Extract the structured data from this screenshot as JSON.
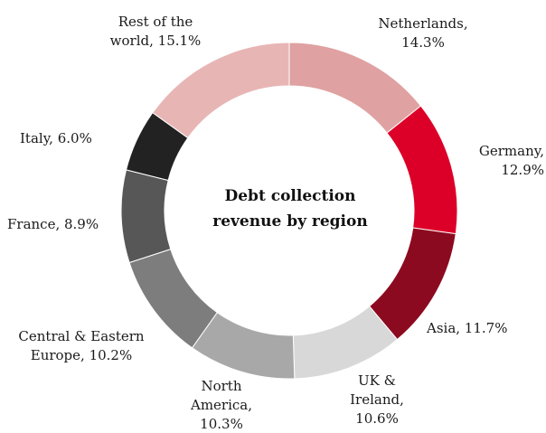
{
  "chart_data": {
    "type": "pie",
    "variant": "donut",
    "center_title": "Debt collection\nrevenue by region",
    "slices": [
      {
        "label": "Netherlands,\n14.3%",
        "name": "Netherlands",
        "value": 14.3,
        "color": "#dfa1a1"
      },
      {
        "label": "Germany,\n12.9%",
        "name": "Germany",
        "value": 12.9,
        "color": "#dc0028"
      },
      {
        "label": "Asia, 11.7%",
        "name": "Asia",
        "value": 11.7,
        "color": "#8c0a1f"
      },
      {
        "label": "UK &\nIreland,\n10.6%",
        "name": "UK & Ireland",
        "value": 10.6,
        "color": "#d8d8d8"
      },
      {
        "label": "North\nAmerica,\n10.3%",
        "name": "North America",
        "value": 10.3,
        "color": "#a8a8a8"
      },
      {
        "label": "Central & Eastern\nEurope, 10.2%",
        "name": "Central & Eastern Europe",
        "value": 10.2,
        "color": "#7d7d7d"
      },
      {
        "label": "France, 8.9%",
        "name": "France",
        "value": 8.9,
        "color": "#575757"
      },
      {
        "label": "Italy, 6.0%",
        "name": "Italy",
        "value": 6.0,
        "color": "#222222"
      },
      {
        "label": "Rest of the\nworld, 15.1%",
        "name": "Rest of the world",
        "value": 15.1,
        "color": "#e8b5b5"
      }
    ]
  }
}
